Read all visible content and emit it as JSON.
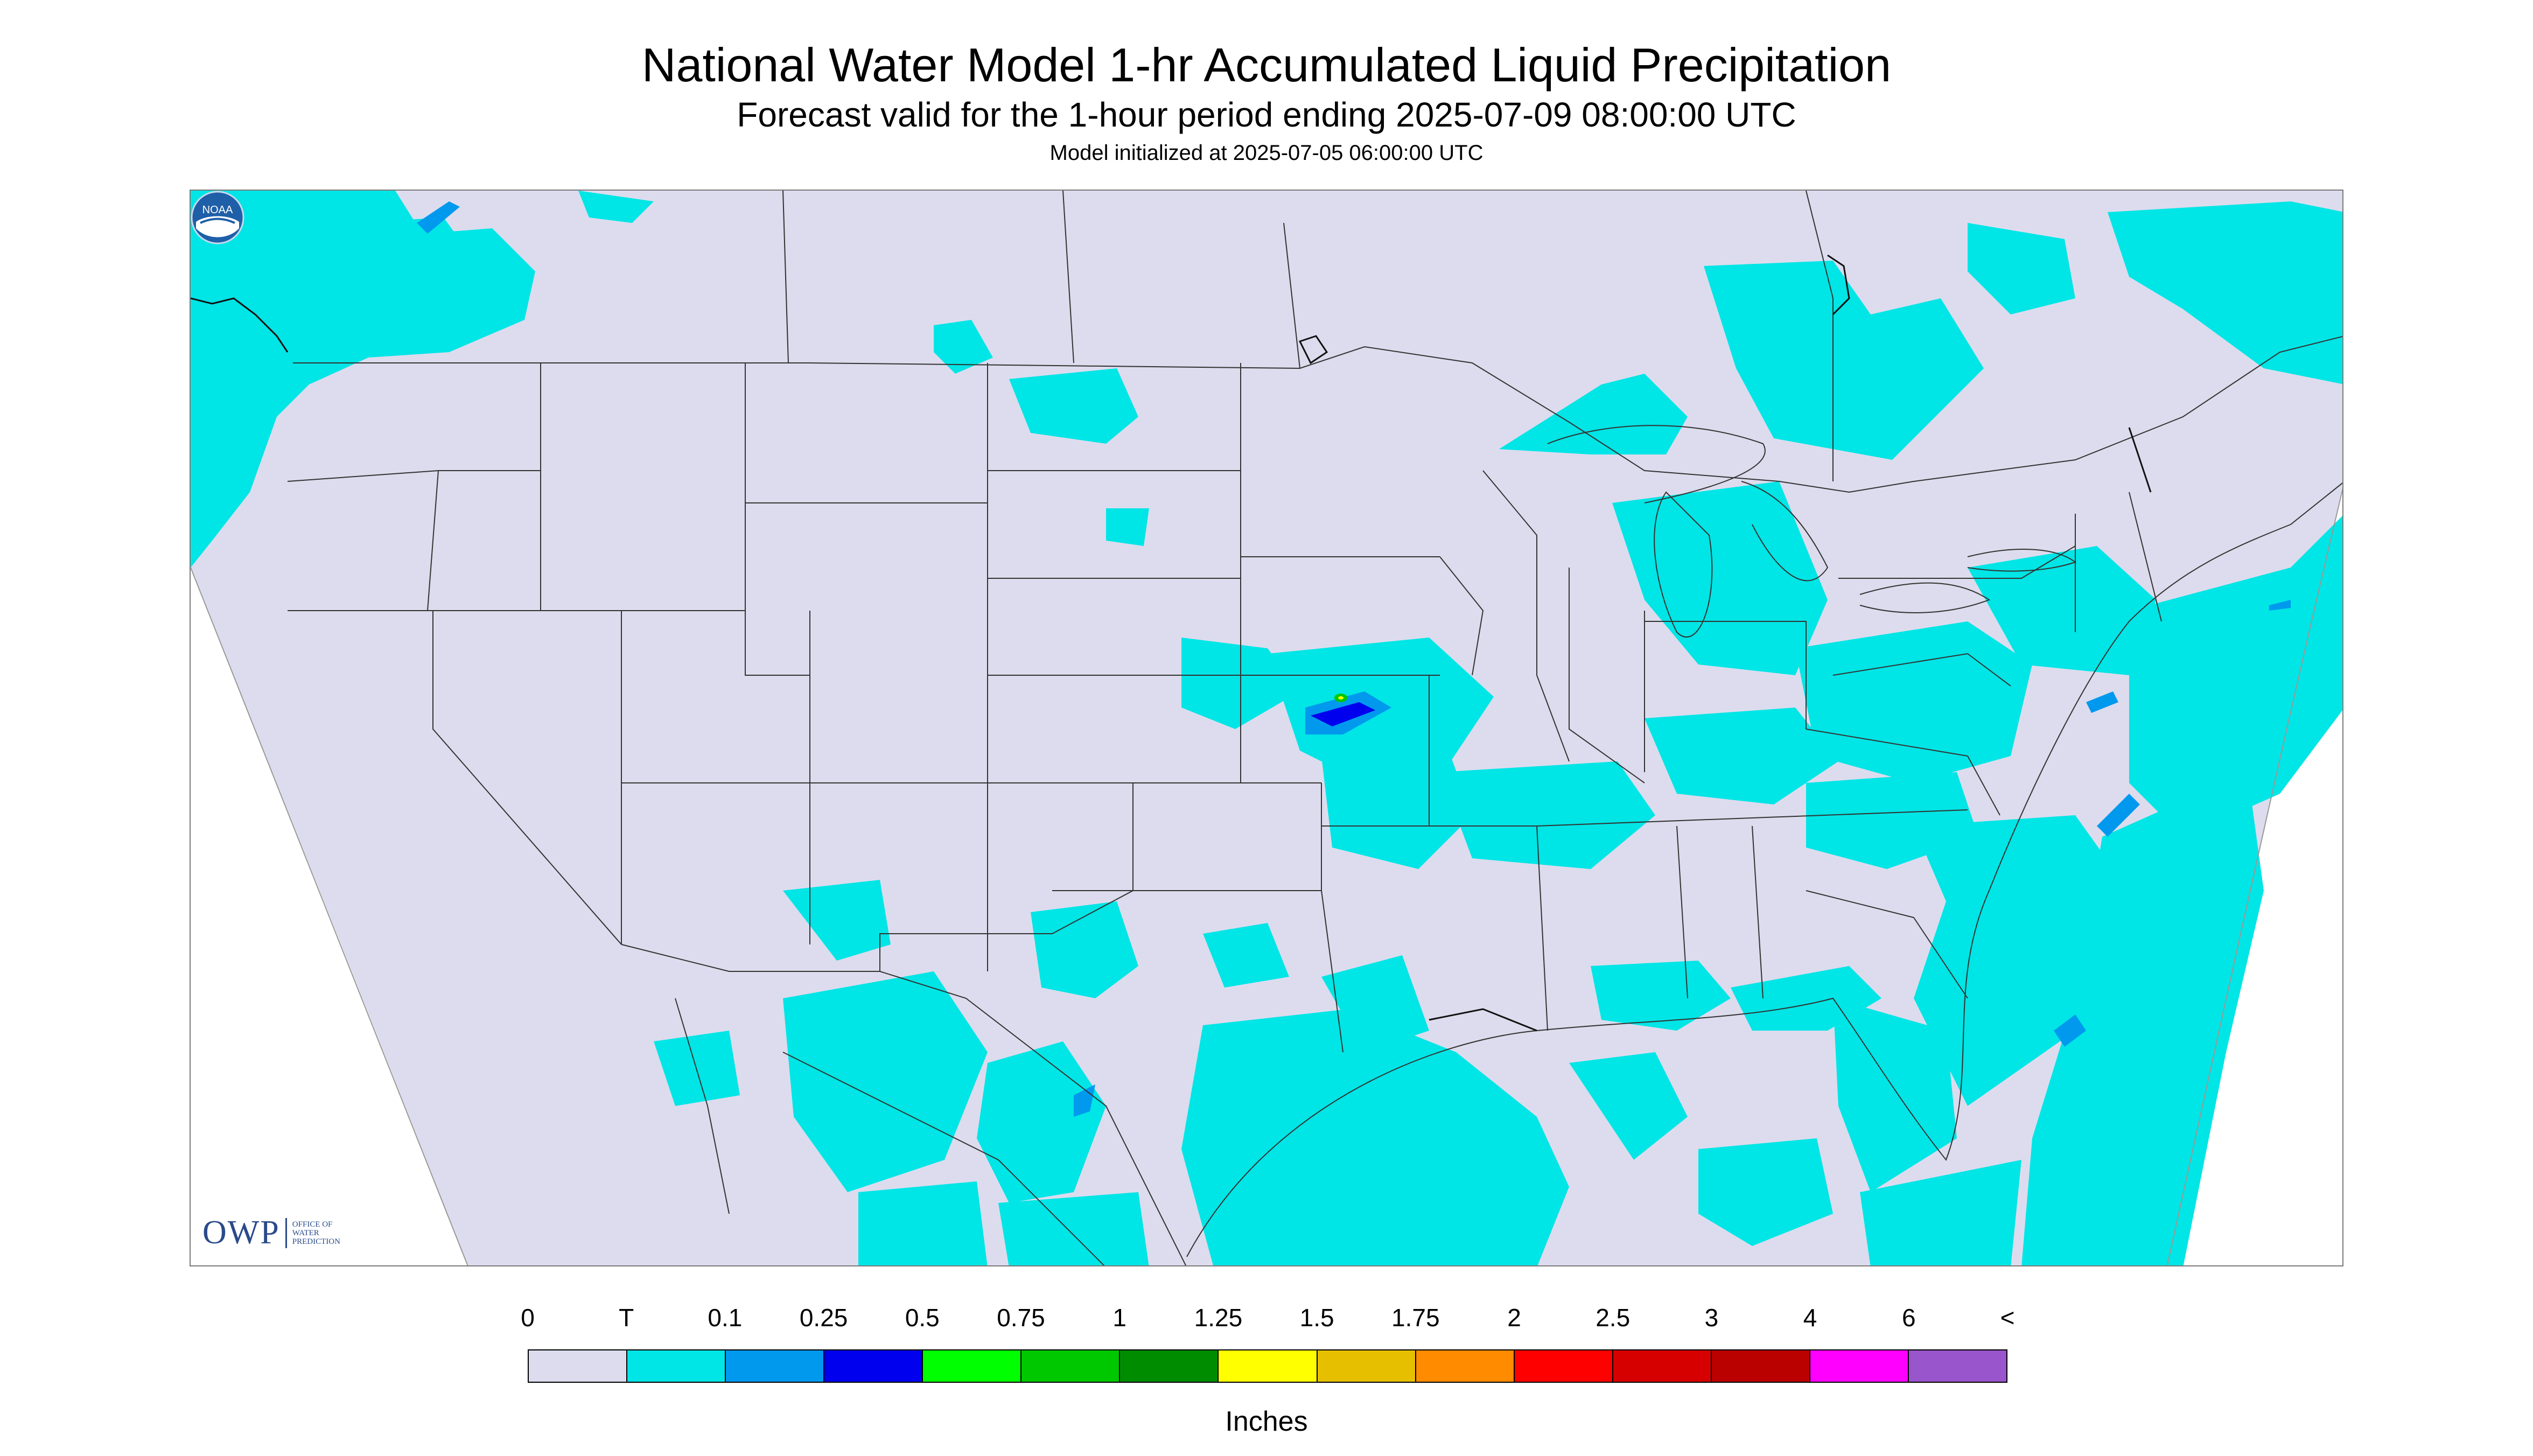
{
  "title": "National Water Model 1-hr Accumulated Liquid Precipitation",
  "subtitle": "Forecast valid for the 1-hour period ending 2025-07-09 08:00:00 UTC",
  "init_line": "Model initialized at 2025-07-05 06:00:00 UTC",
  "logos": {
    "owp_mark": "OWP",
    "owp_lines": [
      "OFFICE OF",
      "WATER",
      "PREDICTION"
    ],
    "noaa": "NOAA"
  },
  "colors": {
    "no_data_region": "#dcdcee",
    "outside_domain": "#ffffff",
    "boundaries": "#333333"
  },
  "legend": {
    "labels": [
      "0",
      "T",
      "0.1",
      "0.25",
      "0.5",
      "0.75",
      "1",
      "1.25",
      "1.5",
      "1.75",
      "2",
      "2.5",
      "3",
      "4",
      "6",
      "<"
    ],
    "colors": [
      "#dcdcee",
      "#00e5e5",
      "#0099ee",
      "#0000ee",
      "#00ff00",
      "#00c800",
      "#008c00",
      "#ffff00",
      "#e6c000",
      "#ff8c00",
      "#ff0000",
      "#d70000",
      "#bb0000",
      "#ff00ff",
      "#9955cc"
    ],
    "units": "Inches"
  }
}
